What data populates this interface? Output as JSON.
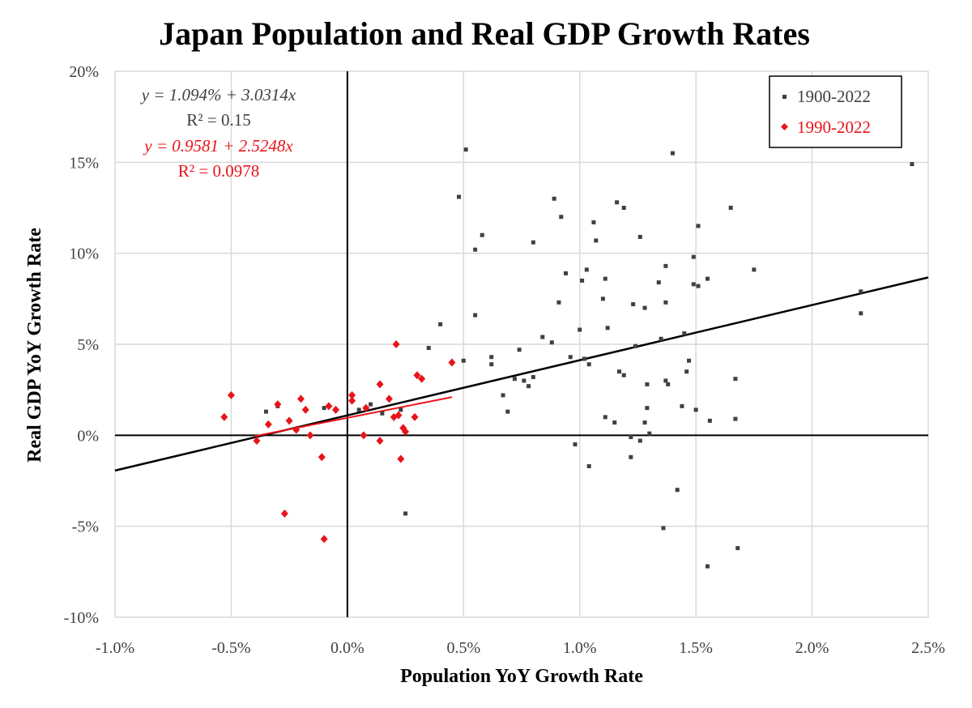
{
  "chart_data": {
    "type": "scatter",
    "title": "Japan Population and Real GDP Growth Rates",
    "xlabel": "Population YoY Growth Rate",
    "ylabel": "Real GDP YoY Growth Rate",
    "xlim": [
      -1.0,
      2.5
    ],
    "ylim": [
      -10,
      20
    ],
    "x_unit": "%",
    "y_unit": "%",
    "x_ticks": [
      "-1.0%",
      "-0.5%",
      "0.0%",
      "0.5%",
      "1.0%",
      "1.5%",
      "2.0%",
      "2.5%"
    ],
    "y_ticks": [
      "20%",
      "15%",
      "10%",
      "5%",
      "0%",
      "-5%",
      "-10%"
    ],
    "grid": true,
    "legend_position": "top-right",
    "colors": {
      "series_1900": "#404040",
      "series_1990": "#e8141b",
      "trend_1900": "#000000",
      "trend_1990": "#e8141b",
      "grid": "#d9d9d9"
    },
    "annotations": {
      "eq1": "y = 1.094% + 3.0314x",
      "r2_1": "R² = 0.15",
      "eq2": "y = 0.9581 + 2.5248x",
      "r2_2": "R² = 0.0978"
    },
    "series": [
      {
        "name": "1900-2022",
        "marker": "square",
        "trendline": {
          "intercept": 1.094,
          "slope": 3.0314,
          "x_range": [
            -1.0,
            2.5
          ]
        },
        "points": [
          [
            0.51,
            15.7
          ],
          [
            0.48,
            13.1
          ],
          [
            0.58,
            11.0
          ],
          [
            0.55,
            10.2
          ],
          [
            0.55,
            6.6
          ],
          [
            0.4,
            6.1
          ],
          [
            0.35,
            4.8
          ],
          [
            0.25,
            -4.3
          ],
          [
            0.5,
            4.1
          ],
          [
            0.62,
            4.3
          ],
          [
            0.62,
            3.9
          ],
          [
            0.67,
            2.2
          ],
          [
            0.69,
            1.3
          ],
          [
            0.72,
            3.1
          ],
          [
            0.74,
            4.7
          ],
          [
            0.76,
            3.0
          ],
          [
            0.78,
            2.7
          ],
          [
            0.8,
            3.2
          ],
          [
            0.8,
            10.6
          ],
          [
            0.84,
            5.4
          ],
          [
            0.89,
            13.0
          ],
          [
            0.88,
            5.1
          ],
          [
            0.91,
            7.3
          ],
          [
            0.92,
            12.0
          ],
          [
            0.94,
            8.9
          ],
          [
            0.96,
            4.3
          ],
          [
            0.98,
            -0.5
          ],
          [
            1.0,
            5.8
          ],
          [
            1.01,
            8.5
          ],
          [
            1.02,
            4.2
          ],
          [
            1.03,
            9.1
          ],
          [
            1.04,
            3.9
          ],
          [
            1.04,
            -1.7
          ],
          [
            1.06,
            11.7
          ],
          [
            1.07,
            10.7
          ],
          [
            1.1,
            7.5
          ],
          [
            1.11,
            8.6
          ],
          [
            1.11,
            1.0
          ],
          [
            1.12,
            5.9
          ],
          [
            1.15,
            0.7
          ],
          [
            1.16,
            12.8
          ],
          [
            1.17,
            3.5
          ],
          [
            1.19,
            12.5
          ],
          [
            1.19,
            3.3
          ],
          [
            1.22,
            -0.1
          ],
          [
            1.22,
            -1.2
          ],
          [
            1.23,
            7.2
          ],
          [
            1.24,
            4.9
          ],
          [
            1.26,
            10.9
          ],
          [
            1.26,
            -0.3
          ],
          [
            1.28,
            7.0
          ],
          [
            1.28,
            0.7
          ],
          [
            1.29,
            2.8
          ],
          [
            1.29,
            1.5
          ],
          [
            1.3,
            0.1
          ],
          [
            1.34,
            8.4
          ],
          [
            1.35,
            5.3
          ],
          [
            1.37,
            9.3
          ],
          [
            1.37,
            7.3
          ],
          [
            1.37,
            3.0
          ],
          [
            1.38,
            2.8
          ],
          [
            1.4,
            15.5
          ],
          [
            1.42,
            -3.0
          ],
          [
            1.44,
            1.6
          ],
          [
            1.45,
            5.6
          ],
          [
            1.46,
            3.5
          ],
          [
            1.47,
            4.1
          ],
          [
            1.36,
            -5.1
          ],
          [
            1.49,
            9.8
          ],
          [
            1.49,
            8.3
          ],
          [
            1.5,
            1.4
          ],
          [
            1.51,
            11.5
          ],
          [
            1.51,
            8.2
          ],
          [
            1.55,
            8.6
          ],
          [
            1.56,
            0.8
          ],
          [
            1.55,
            -7.2
          ],
          [
            1.65,
            12.5
          ],
          [
            1.67,
            0.9
          ],
          [
            1.67,
            3.1
          ],
          [
            1.68,
            -6.2
          ],
          [
            1.75,
            9.1
          ],
          [
            2.21,
            6.7
          ],
          [
            2.21,
            7.9
          ],
          [
            2.43,
            14.9
          ],
          [
            -0.35,
            1.3
          ],
          [
            -0.3,
            1.6
          ],
          [
            -0.1,
            1.5
          ],
          [
            -0.05,
            1.4
          ],
          [
            0.05,
            1.4
          ],
          [
            0.1,
            1.7
          ],
          [
            0.15,
            1.2
          ],
          [
            0.23,
            1.4
          ]
        ]
      },
      {
        "name": "1990-2022",
        "marker": "diamond",
        "trendline": {
          "intercept": 0.9581,
          "slope": 2.5248,
          "x_range": [
            -0.4,
            0.45
          ]
        },
        "points": [
          [
            -0.53,
            1.0
          ],
          [
            -0.5,
            2.2
          ],
          [
            -0.39,
            -0.3
          ],
          [
            -0.34,
            0.6
          ],
          [
            -0.3,
            1.7
          ],
          [
            -0.27,
            -4.3
          ],
          [
            -0.25,
            0.8
          ],
          [
            -0.22,
            0.3
          ],
          [
            -0.2,
            2.0
          ],
          [
            -0.18,
            1.4
          ],
          [
            -0.16,
            0.0
          ],
          [
            -0.11,
            -1.2
          ],
          [
            -0.1,
            -5.7
          ],
          [
            -0.08,
            1.6
          ],
          [
            -0.05,
            1.4
          ],
          [
            0.02,
            1.9
          ],
          [
            0.02,
            2.2
          ],
          [
            0.07,
            0.0
          ],
          [
            0.08,
            1.5
          ],
          [
            0.14,
            -0.3
          ],
          [
            0.14,
            2.8
          ],
          [
            0.18,
            2.0
          ],
          [
            0.2,
            1.0
          ],
          [
            0.21,
            5.0
          ],
          [
            0.22,
            1.1
          ],
          [
            0.23,
            -1.3
          ],
          [
            0.24,
            0.4
          ],
          [
            0.25,
            0.2
          ],
          [
            0.29,
            1.0
          ],
          [
            0.3,
            3.3
          ],
          [
            0.32,
            3.1
          ],
          [
            0.45,
            4.0
          ]
        ]
      }
    ]
  }
}
